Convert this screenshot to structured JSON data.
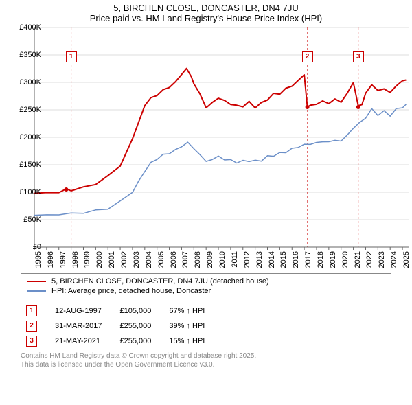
{
  "title_line1": "5, BIRCHEN CLOSE, DONCASTER, DN4 7JU",
  "title_line2": "Price paid vs. HM Land Registry's House Price Index (HPI)",
  "chart": {
    "type": "line",
    "background_color": "#ffffff",
    "x_start": 1995,
    "x_end": 2025.5,
    "x_ticks": [
      "1995",
      "1996",
      "1997",
      "1998",
      "1999",
      "2000",
      "2001",
      "2002",
      "2003",
      "2004",
      "2005",
      "2006",
      "2007",
      "2008",
      "2009",
      "2010",
      "2011",
      "2012",
      "2013",
      "2014",
      "2015",
      "2016",
      "2017",
      "2018",
      "2019",
      "2020",
      "2021",
      "2022",
      "2023",
      "2024",
      "2025"
    ],
    "y_min": 0,
    "y_max": 400000,
    "y_step": 50000,
    "y_tick_labels": [
      "£0",
      "£50K",
      "£100K",
      "£150K",
      "£200K",
      "£250K",
      "£300K",
      "£350K",
      "£400K"
    ],
    "grid_color": "#dddddd",
    "axis_color": "#666666",
    "series": {
      "price": {
        "color": "#cc0000",
        "width": 2,
        "label": "5, BIRCHEN CLOSE, DONCASTER, DN4 7JU (detached house)",
        "points": [
          [
            1995,
            98000
          ],
          [
            1996,
            99000
          ],
          [
            1997,
            100000
          ],
          [
            1997.6,
            105000
          ],
          [
            1998,
            104000
          ],
          [
            1999,
            108000
          ],
          [
            2000,
            116000
          ],
          [
            2001,
            128000
          ],
          [
            2002,
            150000
          ],
          [
            2002.5,
            170000
          ],
          [
            2003,
            200000
          ],
          [
            2003.5,
            225000
          ],
          [
            2004,
            260000
          ],
          [
            2004.5,
            270000
          ],
          [
            2005,
            278000
          ],
          [
            2005.5,
            285000
          ],
          [
            2006,
            292000
          ],
          [
            2006.5,
            300000
          ],
          [
            2007,
            315000
          ],
          [
            2007.4,
            325000
          ],
          [
            2007.8,
            310000
          ],
          [
            2008,
            298000
          ],
          [
            2008.5,
            278000
          ],
          [
            2009,
            255000
          ],
          [
            2009.5,
            262000
          ],
          [
            2010,
            273000
          ],
          [
            2010.5,
            265000
          ],
          [
            2011,
            262000
          ],
          [
            2011.5,
            256000
          ],
          [
            2012,
            258000
          ],
          [
            2012.5,
            263000
          ],
          [
            2013,
            256000
          ],
          [
            2013.5,
            261000
          ],
          [
            2014,
            270000
          ],
          [
            2014.5,
            278000
          ],
          [
            2015,
            280000
          ],
          [
            2015.5,
            288000
          ],
          [
            2016,
            294000
          ],
          [
            2016.5,
            303000
          ],
          [
            2017,
            314000
          ],
          [
            2017.25,
            255000
          ],
          [
            2017.5,
            258000
          ],
          [
            2018,
            261000
          ],
          [
            2018.5,
            265000
          ],
          [
            2019,
            263000
          ],
          [
            2019.5,
            268000
          ],
          [
            2020,
            266000
          ],
          [
            2020.5,
            278000
          ],
          [
            2021,
            302000
          ],
          [
            2021.4,
            255000
          ],
          [
            2021.7,
            262000
          ],
          [
            2022,
            278000
          ],
          [
            2022.5,
            298000
          ],
          [
            2023,
            283000
          ],
          [
            2023.5,
            290000
          ],
          [
            2024,
            280000
          ],
          [
            2024.5,
            295000
          ],
          [
            2025,
            302000
          ],
          [
            2025.3,
            305000
          ]
        ]
      },
      "hpi": {
        "color": "#6b8fc8",
        "width": 1.5,
        "label": "HPI: Average price, detached house, Doncaster",
        "points": [
          [
            1995,
            58000
          ],
          [
            1996,
            58500
          ],
          [
            1997,
            59500
          ],
          [
            1998,
            61000
          ],
          [
            1999,
            63000
          ],
          [
            2000,
            66000
          ],
          [
            2001,
            71000
          ],
          [
            2002,
            82000
          ],
          [
            2003,
            102000
          ],
          [
            2003.5,
            118000
          ],
          [
            2004,
            140000
          ],
          [
            2004.5,
            152000
          ],
          [
            2005,
            162000
          ],
          [
            2005.5,
            167000
          ],
          [
            2006,
            172000
          ],
          [
            2006.5,
            176000
          ],
          [
            2007,
            184000
          ],
          [
            2007.5,
            190000
          ],
          [
            2008,
            180000
          ],
          [
            2008.5,
            168000
          ],
          [
            2009,
            156000
          ],
          [
            2009.5,
            160000
          ],
          [
            2010,
            165000
          ],
          [
            2010.5,
            160000
          ],
          [
            2011,
            158000
          ],
          [
            2011.5,
            155000
          ],
          [
            2012,
            156000
          ],
          [
            2012.5,
            158000
          ],
          [
            2013,
            156000
          ],
          [
            2013.5,
            159000
          ],
          [
            2014,
            164000
          ],
          [
            2014.5,
            168000
          ],
          [
            2015,
            170000
          ],
          [
            2015.5,
            174000
          ],
          [
            2016,
            178000
          ],
          [
            2016.5,
            183000
          ],
          [
            2017,
            186000
          ],
          [
            2017.5,
            188000
          ],
          [
            2018,
            190000
          ],
          [
            2018.5,
            192000
          ],
          [
            2019,
            192000
          ],
          [
            2019.5,
            194000
          ],
          [
            2020,
            194000
          ],
          [
            2020.5,
            203000
          ],
          [
            2021,
            218000
          ],
          [
            2021.5,
            225000
          ],
          [
            2022,
            237000
          ],
          [
            2022.5,
            250000
          ],
          [
            2023,
            242000
          ],
          [
            2023.5,
            246000
          ],
          [
            2024,
            241000
          ],
          [
            2024.5,
            250000
          ],
          [
            2025,
            256000
          ],
          [
            2025.3,
            258000
          ]
        ]
      }
    },
    "sale_markers": [
      {
        "num": "1",
        "x": 1997.6,
        "dashed": 1998,
        "box_y": 35
      },
      {
        "num": "2",
        "x": 2017.25,
        "dashed": 2017.25,
        "box_y": 35
      },
      {
        "num": "3",
        "x": 2021.4,
        "dashed": 2021.4,
        "box_y": 35
      }
    ],
    "marker_dot_color": "#cc0000"
  },
  "legend": {
    "rows": [
      {
        "color": "#cc0000",
        "label": "5, BIRCHEN CLOSE, DONCASTER, DN4 7JU (detached house)"
      },
      {
        "color": "#6b8fc8",
        "label": "HPI: Average price, detached house, Doncaster"
      }
    ]
  },
  "sales": [
    {
      "num": "1",
      "date": "12-AUG-1997",
      "price": "£105,000",
      "delta": "67% ↑ HPI"
    },
    {
      "num": "2",
      "date": "31-MAR-2017",
      "price": "£255,000",
      "delta": "39% ↑ HPI"
    },
    {
      "num": "3",
      "date": "21-MAY-2021",
      "price": "£255,000",
      "delta": "15% ↑ HPI"
    }
  ],
  "footnote_l1": "Contains HM Land Registry data © Crown copyright and database right 2025.",
  "footnote_l2": "This data is licensed under the Open Government Licence v3.0."
}
